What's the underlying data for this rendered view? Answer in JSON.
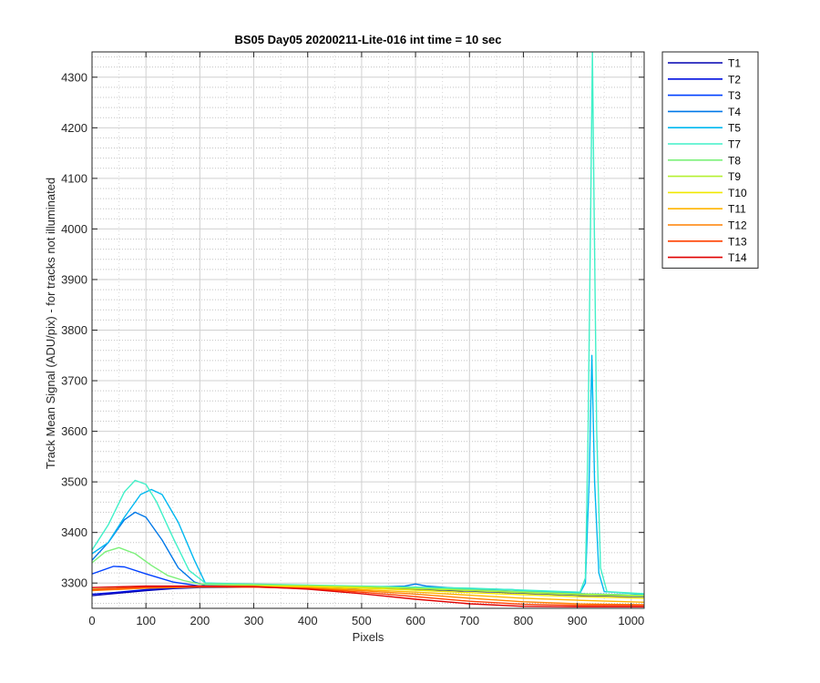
{
  "chart_data": {
    "type": "line",
    "title": "BS05 Day05 20200211-Lite-016 int time = 10 sec",
    "xlabel": "Pixels",
    "ylabel": "Track Mean Signal (ADU/pix) - for tracks not illuminated",
    "xlim": [
      0,
      1024
    ],
    "ylim": [
      3250,
      4350
    ],
    "x_ticks": [
      0,
      100,
      200,
      300,
      400,
      500,
      600,
      700,
      800,
      900,
      1000
    ],
    "y_ticks": [
      3300,
      3400,
      3500,
      3600,
      3700,
      3800,
      3900,
      4000,
      4100,
      4200,
      4300
    ],
    "y_minor_step": 20,
    "grid": true,
    "legend_position": "outside-top-right",
    "series": [
      {
        "name": "T1",
        "color": "#0000b0",
        "points": [
          [
            0,
            3275
          ],
          [
            50,
            3280
          ],
          [
            100,
            3285
          ],
          [
            150,
            3289
          ],
          [
            200,
            3291
          ],
          [
            300,
            3292
          ],
          [
            400,
            3292
          ],
          [
            500,
            3290
          ],
          [
            600,
            3288
          ],
          [
            700,
            3284
          ],
          [
            800,
            3280
          ],
          [
            900,
            3276
          ],
          [
            1024,
            3273
          ]
        ]
      },
      {
        "name": "T2",
        "color": "#0010e0",
        "points": [
          [
            0,
            3278
          ],
          [
            50,
            3282
          ],
          [
            100,
            3287
          ],
          [
            150,
            3290
          ],
          [
            200,
            3292
          ],
          [
            300,
            3293
          ],
          [
            400,
            3293
          ],
          [
            500,
            3291
          ],
          [
            600,
            3289
          ],
          [
            700,
            3286
          ],
          [
            800,
            3282
          ],
          [
            900,
            3278
          ],
          [
            1024,
            3274
          ]
        ]
      },
      {
        "name": "T3",
        "color": "#0040ff",
        "points": [
          [
            0,
            3318
          ],
          [
            40,
            3333
          ],
          [
            60,
            3332
          ],
          [
            100,
            3318
          ],
          [
            150,
            3302
          ],
          [
            200,
            3294
          ],
          [
            300,
            3294
          ],
          [
            400,
            3293
          ],
          [
            500,
            3292
          ],
          [
            600,
            3290
          ],
          [
            700,
            3287
          ],
          [
            800,
            3283
          ],
          [
            900,
            3279
          ],
          [
            1024,
            3275
          ]
        ]
      },
      {
        "name": "T4",
        "color": "#0078e8",
        "points": [
          [
            0,
            3345
          ],
          [
            30,
            3380
          ],
          [
            60,
            3425
          ],
          [
            80,
            3440
          ],
          [
            100,
            3430
          ],
          [
            130,
            3385
          ],
          [
            160,
            3330
          ],
          [
            190,
            3302
          ],
          [
            210,
            3295
          ],
          [
            300,
            3295
          ],
          [
            400,
            3294
          ],
          [
            500,
            3292
          ],
          [
            580,
            3294
          ],
          [
            600,
            3298
          ],
          [
            620,
            3294
          ],
          [
            700,
            3288
          ],
          [
            800,
            3283
          ],
          [
            900,
            3279
          ],
          [
            1024,
            3276
          ]
        ]
      },
      {
        "name": "T5",
        "color": "#00b8f0",
        "points": [
          [
            0,
            3358
          ],
          [
            30,
            3380
          ],
          [
            60,
            3430
          ],
          [
            90,
            3475
          ],
          [
            110,
            3485
          ],
          [
            130,
            3475
          ],
          [
            160,
            3420
          ],
          [
            190,
            3345
          ],
          [
            210,
            3300
          ],
          [
            300,
            3296
          ],
          [
            400,
            3295
          ],
          [
            500,
            3293
          ],
          [
            600,
            3291
          ],
          [
            700,
            3289
          ],
          [
            780,
            3287
          ],
          [
            800,
            3285
          ],
          [
            880,
            3282
          ],
          [
            905,
            3280
          ],
          [
            915,
            3300
          ],
          [
            922,
            3500
          ],
          [
            927,
            3750
          ],
          [
            932,
            3500
          ],
          [
            940,
            3320
          ],
          [
            950,
            3283
          ],
          [
            1024,
            3278
          ]
        ]
      },
      {
        "name": "T7",
        "color": "#40f0c8",
        "points": [
          [
            0,
            3365
          ],
          [
            30,
            3415
          ],
          [
            60,
            3480
          ],
          [
            80,
            3503
          ],
          [
            100,
            3495
          ],
          [
            120,
            3460
          ],
          [
            150,
            3390
          ],
          [
            180,
            3325
          ],
          [
            210,
            3300
          ],
          [
            300,
            3298
          ],
          [
            400,
            3296
          ],
          [
            500,
            3294
          ],
          [
            600,
            3292
          ],
          [
            700,
            3290
          ],
          [
            800,
            3286
          ],
          [
            880,
            3283
          ],
          [
            905,
            3282
          ],
          [
            915,
            3310
          ],
          [
            920,
            3600
          ],
          [
            925,
            4050
          ],
          [
            928,
            4350
          ],
          [
            931,
            4050
          ],
          [
            936,
            3600
          ],
          [
            943,
            3330
          ],
          [
            955,
            3283
          ],
          [
            1024,
            3279
          ]
        ]
      },
      {
        "name": "T8",
        "color": "#7cf07a",
        "points": [
          [
            0,
            3340
          ],
          [
            25,
            3362
          ],
          [
            50,
            3370
          ],
          [
            80,
            3358
          ],
          [
            110,
            3335
          ],
          [
            140,
            3315
          ],
          [
            170,
            3305
          ],
          [
            200,
            3298
          ],
          [
            300,
            3297
          ],
          [
            400,
            3295
          ],
          [
            500,
            3293
          ],
          [
            600,
            3290
          ],
          [
            700,
            3287
          ],
          [
            800,
            3283
          ],
          [
            900,
            3279
          ],
          [
            1024,
            3276
          ]
        ]
      },
      {
        "name": "T9",
        "color": "#b4f030",
        "points": [
          [
            0,
            3288
          ],
          [
            100,
            3292
          ],
          [
            200,
            3294
          ],
          [
            300,
            3295
          ],
          [
            400,
            3294
          ],
          [
            500,
            3292
          ],
          [
            600,
            3289
          ],
          [
            700,
            3285
          ],
          [
            800,
            3281
          ],
          [
            900,
            3277
          ],
          [
            1024,
            3274
          ]
        ]
      },
      {
        "name": "T10",
        "color": "#f0e800",
        "points": [
          [
            0,
            3287
          ],
          [
            100,
            3291
          ],
          [
            200,
            3294
          ],
          [
            300,
            3294
          ],
          [
            400,
            3293
          ],
          [
            500,
            3290
          ],
          [
            600,
            3286
          ],
          [
            700,
            3281
          ],
          [
            800,
            3277
          ],
          [
            900,
            3273
          ],
          [
            1024,
            3270
          ]
        ]
      },
      {
        "name": "T11",
        "color": "#ffb400",
        "points": [
          [
            0,
            3286
          ],
          [
            100,
            3291
          ],
          [
            200,
            3293
          ],
          [
            300,
            3293
          ],
          [
            400,
            3291
          ],
          [
            500,
            3287
          ],
          [
            600,
            3282
          ],
          [
            700,
            3276
          ],
          [
            800,
            3270
          ],
          [
            900,
            3266
          ],
          [
            1024,
            3262
          ]
        ]
      },
      {
        "name": "T12",
        "color": "#ff8000",
        "points": [
          [
            0,
            3285
          ],
          [
            100,
            3290
          ],
          [
            200,
            3292
          ],
          [
            300,
            3292
          ],
          [
            400,
            3290
          ],
          [
            500,
            3285
          ],
          [
            600,
            3278
          ],
          [
            700,
            3270
          ],
          [
            800,
            3263
          ],
          [
            900,
            3259
          ],
          [
            1024,
            3257
          ]
        ]
      },
      {
        "name": "T13",
        "color": "#ff4000",
        "points": [
          [
            0,
            3287
          ],
          [
            100,
            3292
          ],
          [
            200,
            3293
          ],
          [
            300,
            3292
          ],
          [
            400,
            3289
          ],
          [
            500,
            3282
          ],
          [
            600,
            3273
          ],
          [
            700,
            3264
          ],
          [
            800,
            3258
          ],
          [
            900,
            3256
          ],
          [
            1024,
            3256
          ]
        ]
      },
      {
        "name": "T14",
        "color": "#e00000",
        "points": [
          [
            0,
            3291
          ],
          [
            100,
            3294
          ],
          [
            200,
            3294
          ],
          [
            300,
            3293
          ],
          [
            400,
            3288
          ],
          [
            500,
            3279
          ],
          [
            600,
            3268
          ],
          [
            700,
            3259
          ],
          [
            800,
            3254
          ],
          [
            900,
            3253
          ],
          [
            1024,
            3253
          ]
        ]
      }
    ]
  }
}
